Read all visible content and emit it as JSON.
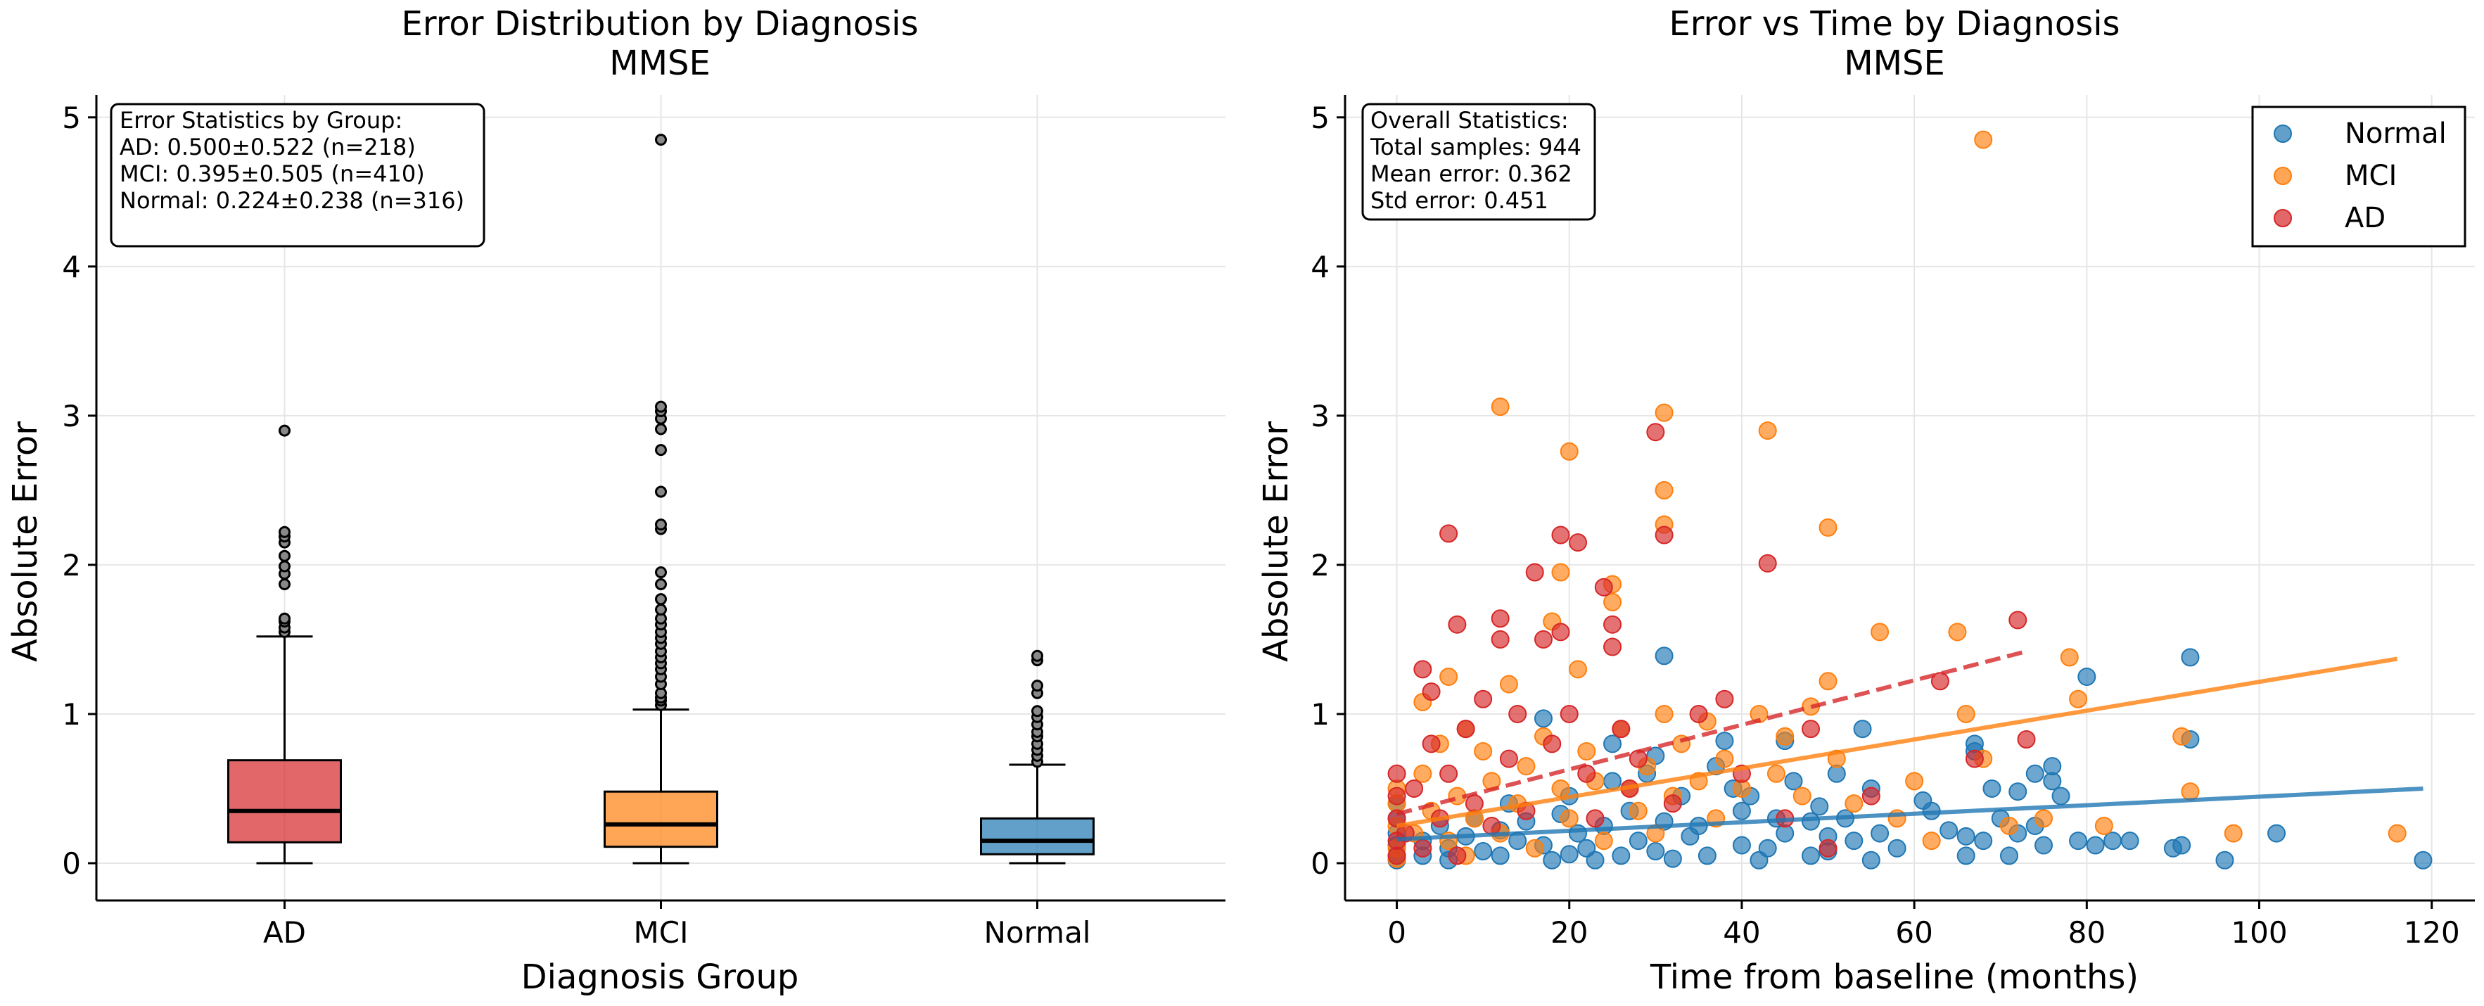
{
  "chart_data": [
    {
      "type": "box",
      "title": "Error Distribution by Diagnosis",
      "subtitle": "MMSE",
      "xlabel": "Diagnosis Group",
      "ylabel": "Absolute Error",
      "ylim": [
        -0.25,
        5.15
      ],
      "yticks": [
        0,
        1,
        2,
        3,
        4,
        5
      ],
      "grid": true,
      "categories": [
        "AD",
        "MCI",
        "Normal"
      ],
      "colors": [
        "#d62728",
        "#ff7f0e",
        "#1f77b4"
      ],
      "boxes": [
        {
          "name": "AD",
          "whislo": 0.0,
          "q1": 0.14,
          "median": 0.35,
          "q3": 0.69,
          "whishi": 1.52,
          "fliers": [
            1.55,
            1.58,
            1.62,
            1.64,
            1.87,
            1.94,
            1.99,
            2.06,
            2.15,
            2.19,
            2.22,
            2.9
          ]
        },
        {
          "name": "MCI",
          "whislo": 0.0,
          "q1": 0.11,
          "median": 0.26,
          "q3": 0.48,
          "whishi": 1.03,
          "fliers": [
            1.06,
            1.09,
            1.11,
            1.14,
            1.2,
            1.25,
            1.3,
            1.34,
            1.38,
            1.42,
            1.47,
            1.51,
            1.55,
            1.6,
            1.64,
            1.7,
            1.77,
            1.87,
            1.95,
            2.24,
            2.27,
            2.49,
            2.77,
            2.91,
            2.98,
            3.03,
            3.06,
            4.85
          ]
        },
        {
          "name": "Normal",
          "whislo": 0.0,
          "q1": 0.06,
          "median": 0.15,
          "q3": 0.3,
          "whishi": 0.66,
          "fliers": [
            0.68,
            0.72,
            0.76,
            0.8,
            0.85,
            0.88,
            0.93,
            0.98,
            1.02,
            1.14,
            1.19,
            1.36,
            1.39
          ]
        }
      ],
      "annotation": {
        "lines": [
          "Error Statistics by Group:",
          "AD: 0.500±0.522 (n=218)",
          "MCI: 0.395±0.505 (n=410)",
          "Normal: 0.224±0.238 (n=316)"
        ]
      }
    },
    {
      "type": "scatter",
      "title": "Error vs Time by Diagnosis",
      "subtitle": "MMSE",
      "xlabel": "Time from baseline (months)",
      "ylabel": "Absolute Error",
      "xlim": [
        -6,
        125
      ],
      "ylim": [
        -0.25,
        5.15
      ],
      "xticks": [
        0,
        20,
        40,
        60,
        80,
        100,
        120
      ],
      "yticks": [
        0,
        1,
        2,
        3,
        4,
        5
      ],
      "grid": true,
      "legend_position": "top-right",
      "annotation": {
        "lines": [
          "Overall Statistics:",
          "Total samples: 944",
          "Mean error: 0.362",
          "Std error: 0.451"
        ]
      },
      "series": [
        {
          "name": "Normal",
          "color": "#1f77b4",
          "trend": {
            "x": [
              0,
              119
            ],
            "y": [
              0.16,
              0.5
            ],
            "dashed": false
          },
          "points": [
            [
              0,
              0.05
            ],
            [
              0,
              0.12
            ],
            [
              0,
              0.2
            ],
            [
              0,
              0.3
            ],
            [
              0,
              0.4
            ],
            [
              0,
              0.02
            ],
            [
              3,
              0.15
            ],
            [
              3,
              0.05
            ],
            [
              5,
              0.25
            ],
            [
              6,
              0.1
            ],
            [
              6,
              0.02
            ],
            [
              8,
              0.18
            ],
            [
              9,
              0.3
            ],
            [
              10,
              0.08
            ],
            [
              12,
              0.22
            ],
            [
              12,
              0.05
            ],
            [
              13,
              0.4
            ],
            [
              14,
              0.15
            ],
            [
              15,
              0.28
            ],
            [
              17,
              0.12
            ],
            [
              17,
              0.97
            ],
            [
              18,
              0.02
            ],
            [
              19,
              0.33
            ],
            [
              20,
              0.06
            ],
            [
              20,
              0.45
            ],
            [
              21,
              0.2
            ],
            [
              22,
              0.1
            ],
            [
              23,
              0.02
            ],
            [
              24,
              0.25
            ],
            [
              25,
              0.55
            ],
            [
              25,
              0.8
            ],
            [
              26,
              0.05
            ],
            [
              27,
              0.35
            ],
            [
              28,
              0.15
            ],
            [
              29,
              0.6
            ],
            [
              30,
              0.08
            ],
            [
              30,
              0.72
            ],
            [
              31,
              1.39
            ],
            [
              31,
              0.28
            ],
            [
              32,
              0.03
            ],
            [
              33,
              0.45
            ],
            [
              34,
              0.18
            ],
            [
              35,
              0.25
            ],
            [
              36,
              0.05
            ],
            [
              37,
              0.65
            ],
            [
              38,
              0.82
            ],
            [
              39,
              0.5
            ],
            [
              40,
              0.12
            ],
            [
              40,
              0.35
            ],
            [
              41,
              0.45
            ],
            [
              42,
              0.02
            ],
            [
              43,
              0.1
            ],
            [
              44,
              0.3
            ],
            [
              45,
              0.82
            ],
            [
              45,
              0.2
            ],
            [
              46,
              0.55
            ],
            [
              48,
              0.28
            ],
            [
              48,
              0.05
            ],
            [
              49,
              0.38
            ],
            [
              50,
              0.18
            ],
            [
              50,
              0.08
            ],
            [
              51,
              0.6
            ],
            [
              52,
              0.3
            ],
            [
              53,
              0.15
            ],
            [
              54,
              0.9
            ],
            [
              55,
              0.02
            ],
            [
              55,
              0.5
            ],
            [
              56,
              0.2
            ],
            [
              58,
              0.1
            ],
            [
              61,
              0.42
            ],
            [
              62,
              0.35
            ],
            [
              64,
              0.22
            ],
            [
              66,
              0.05
            ],
            [
              66,
              0.18
            ],
            [
              67,
              0.75
            ],
            [
              67,
              0.8
            ],
            [
              68,
              0.15
            ],
            [
              69,
              0.5
            ],
            [
              70,
              0.3
            ],
            [
              71,
              0.05
            ],
            [
              72,
              0.48
            ],
            [
              72,
              0.2
            ],
            [
              74,
              0.25
            ],
            [
              74,
              0.6
            ],
            [
              75,
              0.12
            ],
            [
              76,
              0.55
            ],
            [
              76,
              0.65
            ],
            [
              77,
              0.45
            ],
            [
              79,
              0.15
            ],
            [
              80,
              1.25
            ],
            [
              81,
              0.12
            ],
            [
              83,
              0.15
            ],
            [
              85,
              0.15
            ],
            [
              90,
              0.1
            ],
            [
              91,
              0.12
            ],
            [
              92,
              1.38
            ],
            [
              92,
              0.83
            ],
            [
              96,
              0.02
            ],
            [
              102,
              0.2
            ],
            [
              119,
              0.02
            ]
          ]
        },
        {
          "name": "MCI",
          "color": "#ff7f0e",
          "trend": {
            "x": [
              0,
              116
            ],
            "y": [
              0.25,
              1.37
            ],
            "dashed": false
          },
          "points": [
            [
              0,
              0.1
            ],
            [
              0,
              0.25
            ],
            [
              0,
              0.4
            ],
            [
              0,
              0.5
            ],
            [
              0,
              0.03
            ],
            [
              2,
              0.2
            ],
            [
              3,
              1.08
            ],
            [
              3,
              0.6
            ],
            [
              4,
              0.35
            ],
            [
              5,
              0.8
            ],
            [
              6,
              0.15
            ],
            [
              6,
              1.25
            ],
            [
              7,
              0.45
            ],
            [
              8,
              0.05
            ],
            [
              8,
              0.9
            ],
            [
              9,
              0.3
            ],
            [
              10,
              0.75
            ],
            [
              11,
              0.55
            ],
            [
              12,
              3.06
            ],
            [
              12,
              0.2
            ],
            [
              13,
              1.2
            ],
            [
              14,
              0.4
            ],
            [
              15,
              0.65
            ],
            [
              16,
              0.1
            ],
            [
              17,
              0.85
            ],
            [
              18,
              1.62
            ],
            [
              19,
              1.95
            ],
            [
              19,
              0.5
            ],
            [
              20,
              2.76
            ],
            [
              20,
              0.3
            ],
            [
              21,
              1.3
            ],
            [
              22,
              0.75
            ],
            [
              23,
              0.55
            ],
            [
              24,
              0.15
            ],
            [
              25,
              1.75
            ],
            [
              25,
              1.87
            ],
            [
              26,
              0.9
            ],
            [
              27,
              0.5
            ],
            [
              28,
              0.35
            ],
            [
              29,
              0.65
            ],
            [
              30,
              0.2
            ],
            [
              31,
              3.02
            ],
            [
              31,
              2.5
            ],
            [
              31,
              2.27
            ],
            [
              31,
              1.0
            ],
            [
              32,
              0.45
            ],
            [
              33,
              0.8
            ],
            [
              35,
              0.55
            ],
            [
              36,
              0.95
            ],
            [
              37,
              0.3
            ],
            [
              38,
              0.7
            ],
            [
              40,
              0.5
            ],
            [
              42,
              1.0
            ],
            [
              43,
              2.9
            ],
            [
              44,
              0.6
            ],
            [
              45,
              0.85
            ],
            [
              47,
              0.45
            ],
            [
              48,
              1.05
            ],
            [
              50,
              2.25
            ],
            [
              50,
              1.22
            ],
            [
              51,
              0.7
            ],
            [
              53,
              0.4
            ],
            [
              56,
              1.55
            ],
            [
              58,
              0.3
            ],
            [
              60,
              0.55
            ],
            [
              62,
              0.15
            ],
            [
              65,
              1.55
            ],
            [
              66,
              1.0
            ],
            [
              68,
              4.85
            ],
            [
              68,
              0.7
            ],
            [
              71,
              0.25
            ],
            [
              75,
              0.3
            ],
            [
              78,
              1.38
            ],
            [
              79,
              1.1
            ],
            [
              82,
              0.25
            ],
            [
              91,
              0.85
            ],
            [
              92,
              0.48
            ],
            [
              97,
              0.2
            ],
            [
              116,
              0.2
            ]
          ]
        },
        {
          "name": "AD",
          "color": "#d62728",
          "trend": {
            "x": [
              0,
              73
            ],
            "y": [
              0.33,
              1.42
            ],
            "dashed": true
          },
          "points": [
            [
              0,
              0.6
            ],
            [
              0,
              0.45
            ],
            [
              0,
              0.3
            ],
            [
              0,
              0.15
            ],
            [
              0,
              0.05
            ],
            [
              1,
              0.2
            ],
            [
              2,
              0.5
            ],
            [
              3,
              0.1
            ],
            [
              3,
              1.3
            ],
            [
              4,
              0.8
            ],
            [
              4,
              1.15
            ],
            [
              5,
              0.3
            ],
            [
              6,
              2.21
            ],
            [
              6,
              0.6
            ],
            [
              7,
              1.6
            ],
            [
              7,
              0.05
            ],
            [
              8,
              0.9
            ],
            [
              9,
              0.4
            ],
            [
              10,
              1.1
            ],
            [
              11,
              0.25
            ],
            [
              12,
              1.64
            ],
            [
              12,
              1.5
            ],
            [
              13,
              0.7
            ],
            [
              14,
              1.0
            ],
            [
              15,
              0.35
            ],
            [
              16,
              1.95
            ],
            [
              17,
              1.5
            ],
            [
              18,
              0.8
            ],
            [
              19,
              2.2
            ],
            [
              19,
              1.55
            ],
            [
              20,
              1.0
            ],
            [
              21,
              2.15
            ],
            [
              22,
              0.6
            ],
            [
              23,
              0.3
            ],
            [
              24,
              1.85
            ],
            [
              25,
              1.45
            ],
            [
              25,
              1.6
            ],
            [
              26,
              0.9
            ],
            [
              27,
              0.5
            ],
            [
              28,
              0.7
            ],
            [
              30,
              2.89
            ],
            [
              31,
              2.2
            ],
            [
              32,
              0.4
            ],
            [
              35,
              1.0
            ],
            [
              38,
              1.1
            ],
            [
              40,
              0.6
            ],
            [
              43,
              2.01
            ],
            [
              45,
              0.3
            ],
            [
              48,
              0.9
            ],
            [
              50,
              0.1
            ],
            [
              55,
              0.45
            ],
            [
              63,
              1.22
            ],
            [
              67,
              0.7
            ],
            [
              72,
              1.63
            ],
            [
              73,
              0.83
            ]
          ]
        }
      ]
    }
  ]
}
